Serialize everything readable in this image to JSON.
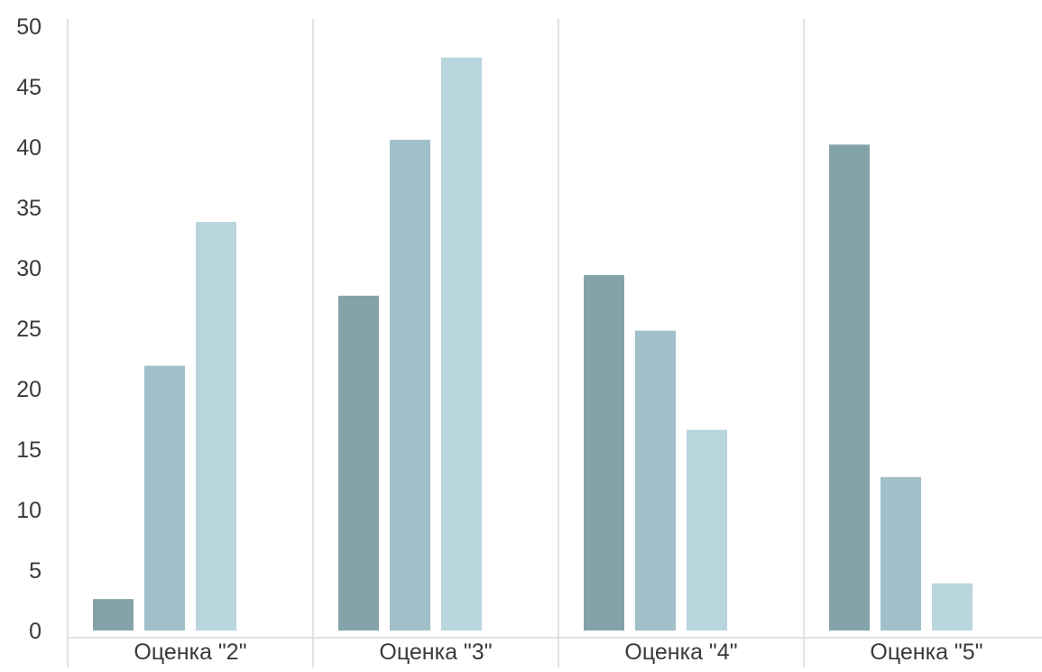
{
  "chart_data": {
    "type": "bar",
    "title": "",
    "xlabel": "",
    "ylabel": "",
    "ylim": [
      0,
      50
    ],
    "yticks": [
      0,
      5,
      10,
      15,
      20,
      25,
      30,
      35,
      40,
      45,
      50
    ],
    "grid": "vertical category separators",
    "legend": "none",
    "categories": [
      "Оценка \"2\"",
      "Оценка \"3\"",
      "Оценка \"4\"",
      "Оценка \"5\""
    ],
    "series": [
      {
        "color": "#84a2aa",
        "values": [
          2.6,
          27.7,
          29.4,
          40.2
        ]
      },
      {
        "color": "#a1bfc8",
        "values": [
          21.9,
          40.6,
          24.8,
          12.7
        ]
      },
      {
        "color": "#b9d5de",
        "values": [
          33.8,
          47.4,
          16.6,
          3.9
        ]
      }
    ]
  }
}
